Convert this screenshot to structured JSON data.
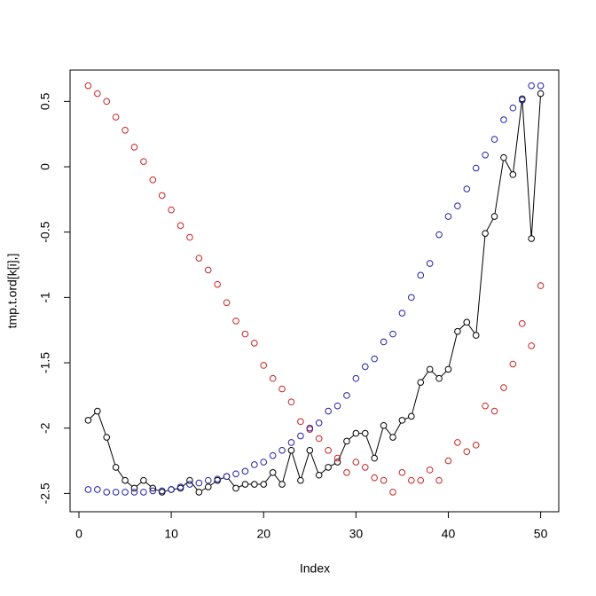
{
  "chart_data": {
    "type": "scatter",
    "xlabel": "Index",
    "ylabel": "tmp.t.ord[k[i],]",
    "x": [
      1,
      2,
      3,
      4,
      5,
      6,
      7,
      8,
      9,
      10,
      11,
      12,
      13,
      14,
      15,
      16,
      17,
      18,
      19,
      20,
      21,
      22,
      23,
      24,
      25,
      26,
      27,
      28,
      29,
      30,
      31,
      32,
      33,
      34,
      35,
      36,
      37,
      38,
      39,
      40,
      41,
      42,
      43,
      44,
      45,
      46,
      47,
      48,
      49,
      50
    ],
    "xlim": [
      -0.96,
      51.96
    ],
    "xticks": [
      0,
      10,
      20,
      30,
      40,
      50
    ],
    "ylim": [
      -2.64,
      0.74
    ],
    "yticks": [
      -2.5,
      -2.0,
      -1.5,
      -1.0,
      -0.5,
      0.0,
      0.5
    ],
    "series": [
      {
        "color": "#000000",
        "line": true,
        "values": [
          -1.94,
          -1.87,
          -2.07,
          -2.3,
          -2.4,
          -2.46,
          -2.4,
          -2.46,
          -2.49,
          -2.47,
          -2.46,
          -2.4,
          -2.49,
          -2.45,
          -2.4,
          -2.37,
          -2.46,
          -2.43,
          -2.43,
          -2.43,
          -2.34,
          -2.43,
          -2.17,
          -2.4,
          -2.17,
          -2.36,
          -2.3,
          -2.26,
          -2.1,
          -2.04,
          -2.04,
          -2.23,
          -1.98,
          -2.07,
          -1.94,
          -1.91,
          -1.65,
          -1.55,
          -1.62,
          -1.55,
          -1.26,
          -1.19,
          -1.29,
          -0.51,
          -0.38,
          0.07,
          -0.06,
          0.52,
          -0.55,
          0.56
        ]
      },
      {
        "color": "#cc2222",
        "line": false,
        "values": [
          0.62,
          0.56,
          0.5,
          0.38,
          0.28,
          0.15,
          0.04,
          -0.1,
          -0.22,
          -0.33,
          -0.45,
          -0.54,
          -0.7,
          -0.79,
          -0.9,
          -1.04,
          -1.18,
          -1.28,
          -1.35,
          -1.52,
          -1.62,
          -1.7,
          -1.8,
          -1.95,
          -2.01,
          -2.08,
          -2.17,
          -2.23,
          -2.34,
          -2.26,
          -2.3,
          -2.38,
          -2.4,
          -2.49,
          -2.34,
          -2.4,
          -2.4,
          -2.32,
          -2.4,
          -2.25,
          -2.11,
          -2.18,
          -2.13,
          -1.83,
          -1.87,
          -1.69,
          -1.51,
          -1.2,
          -1.37,
          -0.91
        ]
      },
      {
        "color": "#2222aa",
        "line": false,
        "values": [
          -2.47,
          -2.47,
          -2.49,
          -2.49,
          -2.49,
          -2.49,
          -2.49,
          -2.48,
          -2.48,
          -2.47,
          -2.45,
          -2.43,
          -2.42,
          -2.4,
          -2.39,
          -2.37,
          -2.35,
          -2.33,
          -2.28,
          -2.26,
          -2.21,
          -2.17,
          -2.11,
          -2.06,
          -2.0,
          -1.96,
          -1.87,
          -1.83,
          -1.75,
          -1.62,
          -1.53,
          -1.47,
          -1.34,
          -1.28,
          -1.12,
          -1.0,
          -0.83,
          -0.74,
          -0.52,
          -0.38,
          -0.3,
          -0.17,
          -0.01,
          0.09,
          0.21,
          0.36,
          0.45,
          0.51,
          0.62,
          0.62
        ]
      }
    ]
  }
}
